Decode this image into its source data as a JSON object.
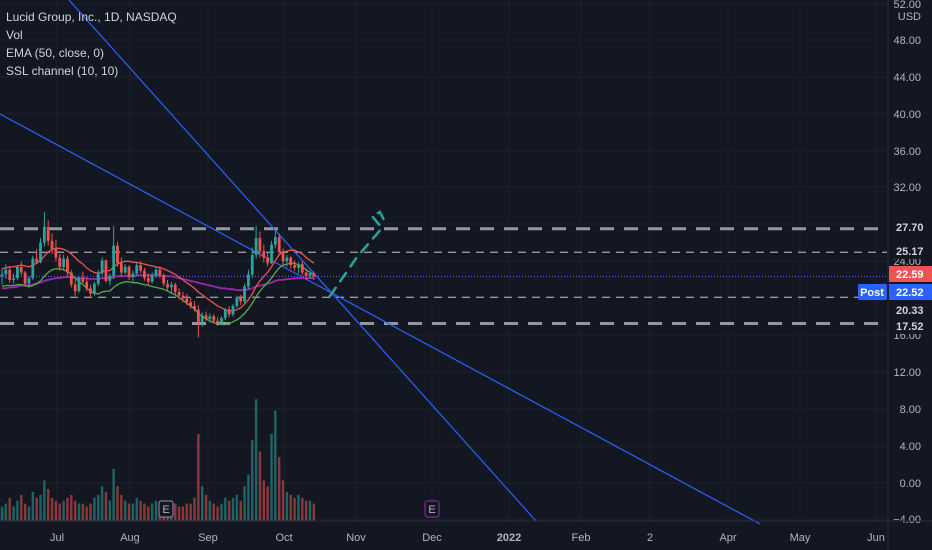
{
  "legend": {
    "title": "Lucid Group, Inc., 1D, NASDAQ",
    "vol": "Vol",
    "ema": "EMA (50, close, 0)",
    "ssl": "SSL channel (10, 10)"
  },
  "currency": "USD",
  "post_label": "Post",
  "colors": {
    "background": "#131722",
    "up": "#26a69a",
    "down": "#ef5350",
    "trendline": "#2962ff",
    "ema": "#9c27b0",
    "ssl_up": "#4caf50",
    "ssl_down": "#ef5350",
    "projection": "#26a69a",
    "level_line": "#9598a1",
    "last_price": "#ef5350",
    "post_price": "#2962ff"
  },
  "chart_data": {
    "type": "candlestick",
    "symbol": "LCID",
    "y_axis": {
      "unit": "USD",
      "ticks": [
        "52.00",
        "48.00",
        "44.00",
        "40.00",
        "36.00",
        "32.00",
        "28.00",
        "24.00",
        "16.00",
        "12.00",
        "8.00",
        "4.00",
        "0.00",
        "−4.00"
      ],
      "range": [
        -4,
        52
      ]
    },
    "x_axis": {
      "ticks": [
        "Jul",
        "Aug",
        "Sep",
        "Oct",
        "Nov",
        "Dec",
        "2022",
        "Feb",
        "2",
        "Apr",
        "May",
        "Jun"
      ]
    },
    "price_labels": [
      {
        "value": "27.70",
        "style": "level"
      },
      {
        "value": "25.17",
        "style": "level"
      },
      {
        "value": "22.59",
        "style": "last"
      },
      {
        "value": "22.52",
        "style": "post"
      },
      {
        "value": "20.33",
        "style": "level"
      },
      {
        "value": "17.52",
        "style": "level"
      }
    ],
    "horizontal_levels": [
      {
        "value": 27.7,
        "style": "thick-dashed"
      },
      {
        "value": 25.17,
        "style": "dashed"
      },
      {
        "value": 20.33,
        "style": "dashed"
      },
      {
        "value": 17.52,
        "style": "thick-dashed"
      }
    ],
    "last_price": 22.59,
    "post_price": 22.52,
    "event_markers": [
      "E",
      "E"
    ],
    "candles": [
      {
        "d": "Jun 21",
        "o": 22.6,
        "h": 23.4,
        "l": 21.7,
        "c": 22.8
      },
      {
        "d": "Jun 22",
        "o": 22.8,
        "h": 23.9,
        "l": 22.3,
        "c": 23.3
      },
      {
        "d": "Jun 23",
        "o": 23.3,
        "h": 23.7,
        "l": 21.9,
        "c": 22.2
      },
      {
        "d": "Jun 24",
        "o": 22.2,
        "h": 22.9,
        "l": 21.8,
        "c": 22.4
      },
      {
        "d": "Jun 25",
        "o": 22.4,
        "h": 23.8,
        "l": 22.2,
        "c": 23.6
      },
      {
        "d": "Jun 28",
        "o": 23.6,
        "h": 24.2,
        "l": 22.7,
        "c": 23.0
      },
      {
        "d": "Jun 29",
        "o": 23.0,
        "h": 23.2,
        "l": 21.5,
        "c": 21.8
      },
      {
        "d": "Jun 30",
        "o": 21.8,
        "h": 22.6,
        "l": 21.3,
        "c": 22.4
      },
      {
        "d": "Jul 1",
        "o": 22.4,
        "h": 24.8,
        "l": 22.2,
        "c": 24.5
      },
      {
        "d": "Jul 2",
        "o": 24.5,
        "h": 25.5,
        "l": 23.9,
        "c": 24.1
      },
      {
        "d": "Jul 6",
        "o": 24.1,
        "h": 26.7,
        "l": 24.0,
        "c": 26.2
      },
      {
        "d": "Jul 7",
        "o": 26.2,
        "h": 29.5,
        "l": 25.8,
        "c": 27.9
      },
      {
        "d": "Jul 8",
        "o": 27.9,
        "h": 28.6,
        "l": 25.9,
        "c": 26.4
      },
      {
        "d": "Jul 9",
        "o": 26.4,
        "h": 27.2,
        "l": 25.0,
        "c": 25.5
      },
      {
        "d": "Jul 12",
        "o": 25.5,
        "h": 26.5,
        "l": 24.2,
        "c": 24.6
      },
      {
        "d": "Jul 13",
        "o": 24.6,
        "h": 25.0,
        "l": 23.2,
        "c": 23.6
      },
      {
        "d": "Jul 14",
        "o": 23.6,
        "h": 24.9,
        "l": 23.4,
        "c": 24.5
      },
      {
        "d": "Jul 15",
        "o": 24.5,
        "h": 24.8,
        "l": 22.6,
        "c": 23.0
      },
      {
        "d": "Jul 16",
        "o": 23.0,
        "h": 23.3,
        "l": 21.4,
        "c": 21.7
      },
      {
        "d": "Jul 19",
        "o": 21.7,
        "h": 22.2,
        "l": 20.5,
        "c": 21.0
      },
      {
        "d": "Jul 20",
        "o": 21.0,
        "h": 22.6,
        "l": 20.8,
        "c": 22.4
      },
      {
        "d": "Jul 21",
        "o": 22.4,
        "h": 23.1,
        "l": 21.8,
        "c": 22.0
      },
      {
        "d": "Jul 22",
        "o": 22.0,
        "h": 22.4,
        "l": 21.0,
        "c": 21.3
      },
      {
        "d": "Jul 23",
        "o": 21.3,
        "h": 21.7,
        "l": 20.4,
        "c": 20.7
      },
      {
        "d": "Jul 26",
        "o": 20.7,
        "h": 22.0,
        "l": 20.5,
        "c": 21.8
      },
      {
        "d": "Jul 27",
        "o": 21.8,
        "h": 23.3,
        "l": 21.5,
        "c": 22.9
      },
      {
        "d": "Jul 28",
        "o": 22.9,
        "h": 24.6,
        "l": 22.7,
        "c": 24.3
      },
      {
        "d": "Jul 29",
        "o": 24.3,
        "h": 24.4,
        "l": 21.9,
        "c": 22.1
      },
      {
        "d": "Jul 30",
        "o": 22.1,
        "h": 22.9,
        "l": 21.6,
        "c": 22.6
      },
      {
        "d": "Aug 2",
        "o": 22.6,
        "h": 28.0,
        "l": 22.3,
        "c": 25.9
      },
      {
        "d": "Aug 3",
        "o": 25.9,
        "h": 26.3,
        "l": 23.6,
        "c": 24.0
      },
      {
        "d": "Aug 4",
        "o": 24.0,
        "h": 24.6,
        "l": 22.6,
        "c": 23.0
      },
      {
        "d": "Aug 5",
        "o": 23.0,
        "h": 23.9,
        "l": 22.8,
        "c": 23.6
      },
      {
        "d": "Aug 6",
        "o": 23.6,
        "h": 23.8,
        "l": 22.2,
        "c": 22.5
      },
      {
        "d": "Aug 9",
        "o": 22.5,
        "h": 23.2,
        "l": 21.9,
        "c": 22.9
      },
      {
        "d": "Aug 10",
        "o": 22.9,
        "h": 24.1,
        "l": 22.6,
        "c": 23.8
      },
      {
        "d": "Aug 11",
        "o": 23.8,
        "h": 24.2,
        "l": 22.9,
        "c": 23.2
      },
      {
        "d": "Aug 12",
        "o": 23.2,
        "h": 23.5,
        "l": 22.1,
        "c": 22.4
      },
      {
        "d": "Aug 13",
        "o": 22.4,
        "h": 22.9,
        "l": 21.6,
        "c": 22.0
      },
      {
        "d": "Aug 16",
        "o": 22.0,
        "h": 23.0,
        "l": 21.8,
        "c": 22.7
      },
      {
        "d": "Aug 17",
        "o": 22.7,
        "h": 23.6,
        "l": 22.4,
        "c": 23.3
      },
      {
        "d": "Aug 18",
        "o": 23.3,
        "h": 23.7,
        "l": 22.4,
        "c": 22.7
      },
      {
        "d": "Aug 19",
        "o": 22.7,
        "h": 22.9,
        "l": 21.5,
        "c": 21.8
      },
      {
        "d": "Aug 20",
        "o": 21.8,
        "h": 22.2,
        "l": 21.0,
        "c": 21.4
      },
      {
        "d": "Aug 23",
        "o": 21.4,
        "h": 22.0,
        "l": 20.8,
        "c": 21.7
      },
      {
        "d": "Aug 24",
        "o": 21.7,
        "h": 21.9,
        "l": 20.6,
        "c": 20.9
      },
      {
        "d": "Aug 25",
        "o": 20.9,
        "h": 21.3,
        "l": 20.1,
        "c": 20.5
      },
      {
        "d": "Aug 26",
        "o": 20.5,
        "h": 20.9,
        "l": 19.8,
        "c": 20.2
      },
      {
        "d": "Aug 27",
        "o": 20.2,
        "h": 20.7,
        "l": 19.5,
        "c": 19.8
      },
      {
        "d": "Aug 30",
        "o": 19.8,
        "h": 20.3,
        "l": 19.1,
        "c": 19.4
      },
      {
        "d": "Aug 31",
        "o": 19.4,
        "h": 19.9,
        "l": 18.8,
        "c": 19.0
      },
      {
        "d": "Sep 1",
        "o": 19.0,
        "h": 19.5,
        "l": 16.0,
        "c": 17.6
      },
      {
        "d": "Sep 2",
        "o": 17.6,
        "h": 18.7,
        "l": 17.2,
        "c": 18.4
      },
      {
        "d": "Sep 3",
        "o": 18.4,
        "h": 18.8,
        "l": 17.8,
        "c": 18.0
      },
      {
        "d": "Sep 7",
        "o": 18.0,
        "h": 18.6,
        "l": 17.6,
        "c": 18.3
      },
      {
        "d": "Sep 8",
        "o": 18.3,
        "h": 18.5,
        "l": 17.5,
        "c": 17.8
      },
      {
        "d": "Sep 9",
        "o": 17.8,
        "h": 18.2,
        "l": 17.3,
        "c": 17.6
      },
      {
        "d": "Sep 10",
        "o": 17.6,
        "h": 18.3,
        "l": 17.4,
        "c": 18.1
      },
      {
        "d": "Sep 13",
        "o": 18.1,
        "h": 19.2,
        "l": 17.9,
        "c": 19.0
      },
      {
        "d": "Sep 14",
        "o": 19.0,
        "h": 19.4,
        "l": 18.2,
        "c": 18.5
      },
      {
        "d": "Sep 15",
        "o": 18.5,
        "h": 19.6,
        "l": 18.3,
        "c": 19.4
      },
      {
        "d": "Sep 16",
        "o": 19.4,
        "h": 20.5,
        "l": 19.2,
        "c": 20.3
      },
      {
        "d": "Sep 17",
        "o": 20.3,
        "h": 20.6,
        "l": 19.5,
        "c": 19.9
      },
      {
        "d": "Sep 20",
        "o": 19.9,
        "h": 21.8,
        "l": 19.7,
        "c": 21.5
      },
      {
        "d": "Sep 21",
        "o": 21.5,
        "h": 23.3,
        "l": 21.2,
        "c": 22.8
      },
      {
        "d": "Sep 22",
        "o": 22.8,
        "h": 25.7,
        "l": 22.4,
        "c": 24.9
      },
      {
        "d": "Sep 23",
        "o": 24.9,
        "h": 28.0,
        "l": 24.5,
        "c": 26.7
      },
      {
        "d": "Sep 24",
        "o": 26.7,
        "h": 27.4,
        "l": 24.6,
        "c": 25.3
      },
      {
        "d": "Sep 27",
        "o": 25.3,
        "h": 26.0,
        "l": 24.1,
        "c": 24.6
      },
      {
        "d": "Sep 28",
        "o": 24.6,
        "h": 25.1,
        "l": 23.7,
        "c": 24.0
      },
      {
        "d": "Sep 29",
        "o": 24.0,
        "h": 26.4,
        "l": 23.9,
        "c": 26.0
      },
      {
        "d": "Sep 30",
        "o": 26.0,
        "h": 27.9,
        "l": 25.6,
        "c": 26.8
      },
      {
        "d": "Oct 1",
        "o": 26.8,
        "h": 27.2,
        "l": 24.8,
        "c": 25.2
      },
      {
        "d": "Oct 4",
        "o": 25.2,
        "h": 25.6,
        "l": 23.8,
        "c": 24.2
      },
      {
        "d": "Oct 5",
        "o": 24.2,
        "h": 24.9,
        "l": 23.6,
        "c": 24.6
      },
      {
        "d": "Oct 6",
        "o": 24.6,
        "h": 24.8,
        "l": 23.4,
        "c": 23.8
      },
      {
        "d": "Oct 7",
        "o": 23.8,
        "h": 24.3,
        "l": 23.2,
        "c": 23.5
      },
      {
        "d": "Oct 8",
        "o": 23.5,
        "h": 24.1,
        "l": 22.9,
        "c": 23.9
      },
      {
        "d": "Oct 11",
        "o": 23.9,
        "h": 24.2,
        "l": 22.7,
        "c": 23.0
      },
      {
        "d": "Oct 12",
        "o": 23.0,
        "h": 23.4,
        "l": 22.2,
        "c": 22.6
      },
      {
        "d": "Oct 13",
        "o": 22.6,
        "h": 23.2,
        "l": 22.3,
        "c": 22.9
      },
      {
        "d": "Oct 14",
        "o": 22.9,
        "h": 23.1,
        "l": 22.2,
        "c": 22.59
      }
    ],
    "volume_millions": [
      5,
      6,
      8,
      5,
      7,
      9,
      6,
      5,
      10,
      8,
      9,
      14,
      11,
      8,
      7,
      6,
      7,
      8,
      9,
      7,
      6,
      6,
      5,
      6,
      8,
      9,
      12,
      10,
      7,
      18,
      12,
      9,
      7,
      6,
      6,
      8,
      7,
      6,
      5,
      6,
      7,
      6,
      7,
      5,
      5,
      6,
      5,
      5,
      6,
      6,
      8,
      30,
      12,
      9,
      7,
      6,
      5,
      6,
      8,
      7,
      8,
      9,
      7,
      12,
      16,
      28,
      42,
      24,
      14,
      12,
      30,
      38,
      22,
      14,
      10,
      9,
      8,
      9,
      8,
      7,
      7,
      6
    ],
    "ema_50": [
      21.3,
      21.3,
      21.4,
      21.4,
      21.5,
      21.6,
      21.6,
      21.6,
      21.7,
      21.8,
      21.9,
      22.1,
      22.2,
      22.3,
      22.4,
      22.4,
      22.5,
      22.5,
      22.5,
      22.4,
      22.4,
      22.4,
      22.4,
      22.3,
      22.3,
      22.3,
      22.4,
      22.4,
      22.4,
      22.5,
      22.6,
      22.6,
      22.6,
      22.6,
      22.6,
      22.7,
      22.7,
      22.7,
      22.7,
      22.7,
      22.7,
      22.7,
      22.6,
      22.6,
      22.6,
      22.5,
      22.4,
      22.3,
      22.2,
      22.1,
      22.0,
      21.9,
      21.8,
      21.7,
      21.6,
      21.5,
      21.4,
      21.3,
      21.3,
      21.2,
      21.2,
      21.1,
      21.1,
      21.1,
      21.2,
      21.3,
      21.5,
      21.6,
      21.7,
      21.8,
      21.9,
      22.1,
      22.2,
      22.2,
      22.3,
      22.3,
      22.4,
      22.4,
      22.4,
      22.4,
      22.4,
      22.4
    ],
    "ssl_upper": [
      23.4,
      23.5,
      23.6,
      23.6,
      23.7,
      23.8,
      23.7,
      23.6,
      23.8,
      24.0,
      24.3,
      24.8,
      25.2,
      25.5,
      25.6,
      25.6,
      25.5,
      25.3,
      25.0,
      24.6,
      24.2,
      23.9,
      23.5,
      23.2,
      23.0,
      22.9,
      23.1,
      23.2,
      23.2,
      23.6,
      23.9,
      24.1,
      24.2,
      24.2,
      24.1,
      24.1,
      24.0,
      23.9,
      23.8,
      23.7,
      23.6,
      23.5,
      23.4,
      23.2,
      23.0,
      22.8,
      22.5,
      22.2,
      21.9,
      21.6,
      21.3,
      20.9,
      20.6,
      20.3,
      20.0,
      19.7,
      19.4,
      19.2,
      19.0,
      18.9,
      18.9,
      19.0,
      19.2,
      19.6,
      20.1,
      20.7,
      21.5,
      22.1,
      22.6,
      23.0,
      23.6,
      24.3,
      24.9,
      25.2,
      25.3,
      25.4,
      25.4,
      25.2,
      25.0,
      24.6,
      24.3,
      24.0
    ],
    "ssl_lower": [
      21.5,
      21.6,
      21.6,
      21.6,
      21.7,
      21.7,
      21.6,
      21.5,
      21.6,
      21.8,
      22.1,
      22.6,
      23.0,
      23.3,
      23.4,
      23.4,
      23.3,
      23.1,
      22.8,
      22.4,
      22.0,
      21.7,
      21.3,
      21.0,
      20.8,
      20.7,
      20.9,
      21.0,
      21.0,
      21.4,
      21.7,
      21.9,
      22.0,
      22.0,
      21.9,
      21.9,
      21.8,
      21.7,
      21.6,
      21.5,
      21.4,
      21.3,
      21.2,
      21.0,
      20.8,
      20.6,
      20.3,
      20.0,
      19.7,
      19.4,
      19.1,
      18.6,
      18.3,
      18.0,
      17.8,
      17.6,
      17.5,
      17.4,
      17.4,
      17.5,
      17.7,
      17.9,
      18.2,
      18.6,
      19.1,
      19.7,
      20.4,
      21.0,
      21.5,
      21.9,
      22.4,
      23.0,
      23.5,
      23.8,
      23.9,
      24.0,
      24.0,
      23.8,
      23.6,
      23.3,
      23.0,
      22.8
    ]
  }
}
